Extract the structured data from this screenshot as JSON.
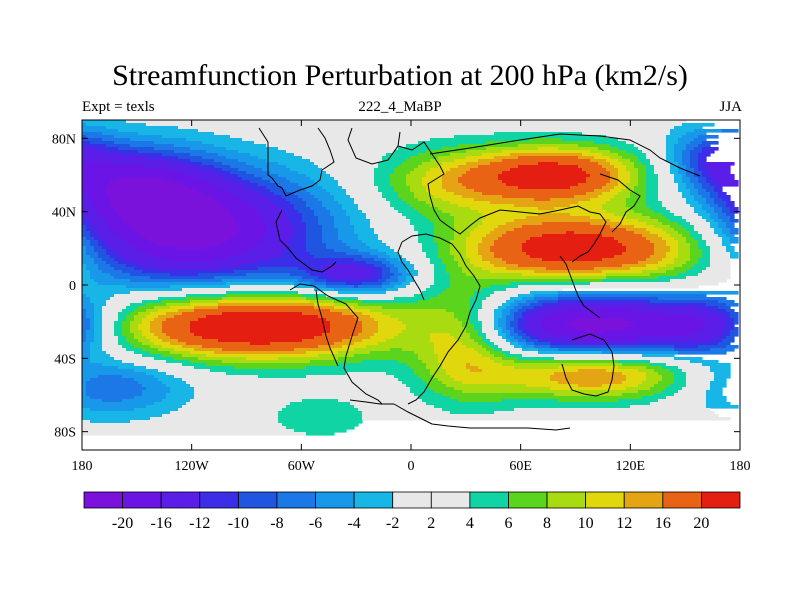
{
  "chart_data": {
    "type": "heatmap",
    "title": "Streamfunction Perturbation at 200 hPa (km2/s)",
    "subtitle_left": "Expt = texls",
    "subtitle_center": "222_4_MaBP",
    "subtitle_right": "JJA",
    "x_ticks": [
      "180",
      "120W",
      "60W",
      "0",
      "60E",
      "120E",
      "180"
    ],
    "x_tick_values": [
      -180,
      -120,
      -60,
      0,
      60,
      120,
      180
    ],
    "y_ticks": [
      "80N",
      "40N",
      "0",
      "40S",
      "80S"
    ],
    "y_tick_values": [
      80,
      40,
      0,
      -40,
      -80
    ],
    "xlim": [
      -180,
      180
    ],
    "ylim": [
      -90,
      90
    ],
    "contour_levels": [
      -20,
      -16,
      -12,
      -10,
      -8,
      -6,
      -4,
      -2,
      2,
      4,
      6,
      8,
      10,
      12,
      16,
      20
    ],
    "colorbar_labels": [
      "-20",
      "-16",
      "-12",
      "-10",
      "-8",
      "-6",
      "-4",
      "-2",
      "2",
      "4",
      "6",
      "8",
      "10",
      "12",
      "16",
      "20"
    ],
    "colorbar_colors": [
      "#7a12dc",
      "#6a14e6",
      "#5a1ee8",
      "#3c2ee8",
      "#1f55e0",
      "#1c78e6",
      "#1898e8",
      "#18b6e6",
      "#e8e8e8",
      "#10d4a4",
      "#5ad41c",
      "#a8dc10",
      "#e0d80c",
      "#e4a414",
      "#e86414",
      "#e41e10"
    ],
    "features": [
      {
        "lon": -120,
        "lat": 30,
        "sx": 50,
        "sy": 22,
        "amp": -22
      },
      {
        "lon": -150,
        "lat": 55,
        "sx": 30,
        "sy": 15,
        "amp": -12
      },
      {
        "lon": -30,
        "lat": 5,
        "sx": 22,
        "sy": 8,
        "amp": -13
      },
      {
        "lon": 100,
        "lat": -22,
        "sx": 45,
        "sy": 13,
        "amp": -22
      },
      {
        "lon": 165,
        "lat": -22,
        "sx": 22,
        "sy": 12,
        "amp": -10
      },
      {
        "lon": -165,
        "lat": -55,
        "sx": 30,
        "sy": 12,
        "amp": -8
      },
      {
        "lon": 170,
        "lat": 70,
        "sx": 20,
        "sy": 12,
        "amp": -10
      },
      {
        "lon": -85,
        "lat": -22,
        "sx": 55,
        "sy": 13,
        "amp": 22
      },
      {
        "lon": 85,
        "lat": 20,
        "sx": 40,
        "sy": 13,
        "amp": 19
      },
      {
        "lon": 80,
        "lat": 60,
        "sx": 32,
        "sy": 11,
        "amp": 18
      },
      {
        "lon": 100,
        "lat": -48,
        "sx": 40,
        "sy": 10,
        "amp": 14
      },
      {
        "lon": 30,
        "lat": -30,
        "sx": 20,
        "sy": 22,
        "amp": 10
      },
      {
        "lon": 20,
        "lat": 55,
        "sx": 30,
        "sy": 14,
        "amp": 8
      },
      {
        "lon": -50,
        "lat": -72,
        "sx": 20,
        "sy": 8,
        "amp": 4
      },
      {
        "lon": 150,
        "lat": 20,
        "sx": 30,
        "sy": 18,
        "amp": 6
      }
    ]
  }
}
